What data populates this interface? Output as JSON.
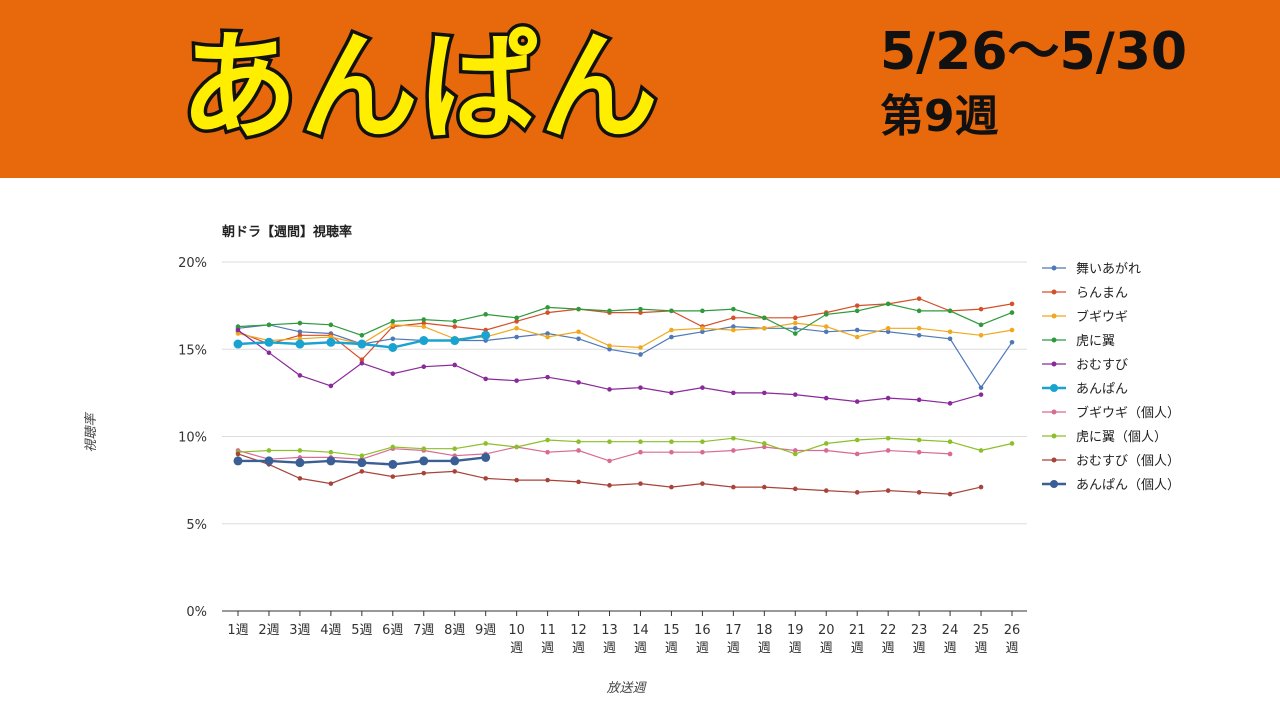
{
  "header": {
    "title": "あんぱん",
    "date_range": "5/26～5/30",
    "week": "第9週"
  },
  "chart_data": {
    "type": "line",
    "title": "朝ドラ【週間】視聴率",
    "xlabel": "放送週",
    "ylabel": "視聴率",
    "ylim": [
      0,
      20
    ],
    "yticks": [
      "0%",
      "5%",
      "10%",
      "15%",
      "20%"
    ],
    "categories": [
      "1週",
      "2週",
      "3週",
      "4週",
      "5週",
      "6週",
      "7週",
      "8週",
      "9週",
      "10週",
      "11週",
      "12週",
      "13週",
      "14週",
      "15週",
      "16週",
      "17週",
      "18週",
      "19週",
      "20週",
      "21週",
      "22週",
      "23週",
      "24週",
      "25週",
      "26週"
    ],
    "grid": true,
    "legend": "right",
    "series": [
      {
        "name": "舞いあがれ",
        "color": "#4e79b8",
        "values": [
          16.2,
          16.4,
          16.0,
          15.9,
          15.3,
          15.6,
          15.5,
          15.5,
          15.5,
          15.7,
          15.9,
          15.6,
          15.0,
          14.7,
          15.7,
          16.0,
          16.3,
          16.2,
          16.2,
          16.0,
          16.1,
          16.0,
          15.8,
          15.6,
          12.8,
          15.4
        ]
      },
      {
        "name": "らんまん",
        "color": "#d4502a",
        "values": [
          16.0,
          15.3,
          15.8,
          15.8,
          14.4,
          16.3,
          16.5,
          16.3,
          16.1,
          16.6,
          17.1,
          17.3,
          17.1,
          17.1,
          17.2,
          16.3,
          16.8,
          16.8,
          16.8,
          17.1,
          17.5,
          17.6,
          17.9,
          17.2,
          17.3,
          17.6
        ]
      },
      {
        "name": "ブギウギ",
        "color": "#f0a81e",
        "values": [
          15.9,
          15.5,
          15.6,
          15.7,
          15.3,
          16.4,
          16.3,
          15.6,
          15.7,
          16.2,
          15.7,
          16.0,
          15.2,
          15.1,
          16.1,
          16.2,
          16.1,
          16.2,
          16.5,
          16.3,
          15.7,
          16.2,
          16.2,
          16.0,
          15.8,
          16.1
        ]
      },
      {
        "name": "虎に翼",
        "color": "#2e9a3c",
        "values": [
          16.3,
          16.4,
          16.5,
          16.4,
          15.8,
          16.6,
          16.7,
          16.6,
          17.0,
          16.8,
          17.4,
          17.3,
          17.2,
          17.3,
          17.2,
          17.2,
          17.3,
          16.8,
          15.9,
          17.0,
          17.2,
          17.6,
          17.2,
          17.2,
          16.4,
          17.1
        ]
      },
      {
        "name": "おむすび",
        "color": "#8a2a9a",
        "values": [
          16.1,
          14.8,
          13.5,
          12.9,
          14.2,
          13.6,
          14.0,
          14.1,
          13.3,
          13.2,
          13.4,
          13.1,
          12.7,
          12.8,
          12.5,
          12.8,
          12.5,
          12.5,
          12.4,
          12.2,
          12.0,
          12.2,
          12.1,
          11.9,
          12.4,
          null
        ]
      },
      {
        "name": "あんぱん",
        "color": "#1aa3d0",
        "values": [
          15.3,
          15.4,
          15.3,
          15.4,
          15.3,
          15.1,
          15.5,
          15.5,
          15.8,
          null,
          null,
          null,
          null,
          null,
          null,
          null,
          null,
          null,
          null,
          null,
          null,
          null,
          null,
          null,
          null,
          null
        ]
      },
      {
        "name": "ブギウギ（個人）",
        "color": "#d86a94",
        "values": [
          9.2,
          8.7,
          8.8,
          8.8,
          8.7,
          9.3,
          9.2,
          8.9,
          9.0,
          9.4,
          9.1,
          9.2,
          8.6,
          9.1,
          9.1,
          9.1,
          9.2,
          9.4,
          9.2,
          9.2,
          9.0,
          9.2,
          9.1,
          9.0,
          null,
          null
        ]
      },
      {
        "name": "虎に翼（個人）",
        "color": "#8cbf2a",
        "values": [
          9.1,
          9.2,
          9.2,
          9.1,
          8.9,
          9.4,
          9.3,
          9.3,
          9.6,
          9.4,
          9.8,
          9.7,
          9.7,
          9.7,
          9.7,
          9.7,
          9.9,
          9.6,
          9.0,
          9.6,
          9.8,
          9.9,
          9.8,
          9.7,
          9.2,
          9.6
        ]
      },
      {
        "name": "おむすび（個人）",
        "color": "#a8433a",
        "values": [
          9.0,
          8.4,
          7.6,
          7.3,
          8.0,
          7.7,
          7.9,
          8.0,
          7.6,
          7.5,
          7.5,
          7.4,
          7.2,
          7.3,
          7.1,
          7.3,
          7.1,
          7.1,
          7.0,
          6.9,
          6.8,
          6.9,
          6.8,
          6.7,
          7.1,
          null
        ]
      },
      {
        "name": "あんぱん（個人）",
        "color": "#3a5f94",
        "values": [
          8.6,
          8.6,
          8.5,
          8.6,
          8.5,
          8.4,
          8.6,
          8.6,
          8.8,
          null,
          null,
          null,
          null,
          null,
          null,
          null,
          null,
          null,
          null,
          null,
          null,
          null,
          null,
          null,
          null,
          null
        ]
      }
    ]
  }
}
